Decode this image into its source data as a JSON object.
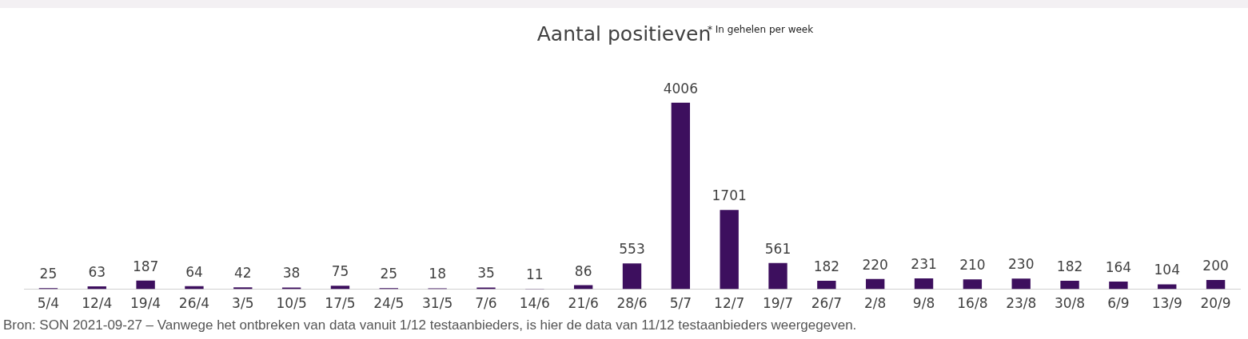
{
  "chart_data": {
    "type": "bar",
    "title": "Aantal positieven",
    "annotations": [
      "* In gehelen per week",
      "Bron: SON 2021-09-27 – Vanwege het ontbreken van data vanuit 1/12 testaanbieders, is hier de data van 11/12 testaanbieders weergegeven."
    ],
    "categories": [
      "5/4",
      "12/4",
      "19/4",
      "26/4",
      "3/5",
      "10/5",
      "17/5",
      "24/5",
      "31/5",
      "7/6",
      "14/6",
      "21/6",
      "28/6",
      "5/7",
      "12/7",
      "19/7",
      "26/7",
      "2/8",
      "9/8",
      "16/8",
      "23/8",
      "30/8",
      "6/9",
      "13/9",
      "20/9"
    ],
    "values": [
      25,
      63,
      187,
      64,
      42,
      38,
      75,
      25,
      18,
      35,
      11,
      86,
      553,
      4006,
      1701,
      561,
      182,
      220,
      231,
      210,
      230,
      182,
      164,
      104,
      200
    ],
    "color": "#3d0f5e",
    "data_labels": true,
    "grid": false,
    "legend": false
  }
}
